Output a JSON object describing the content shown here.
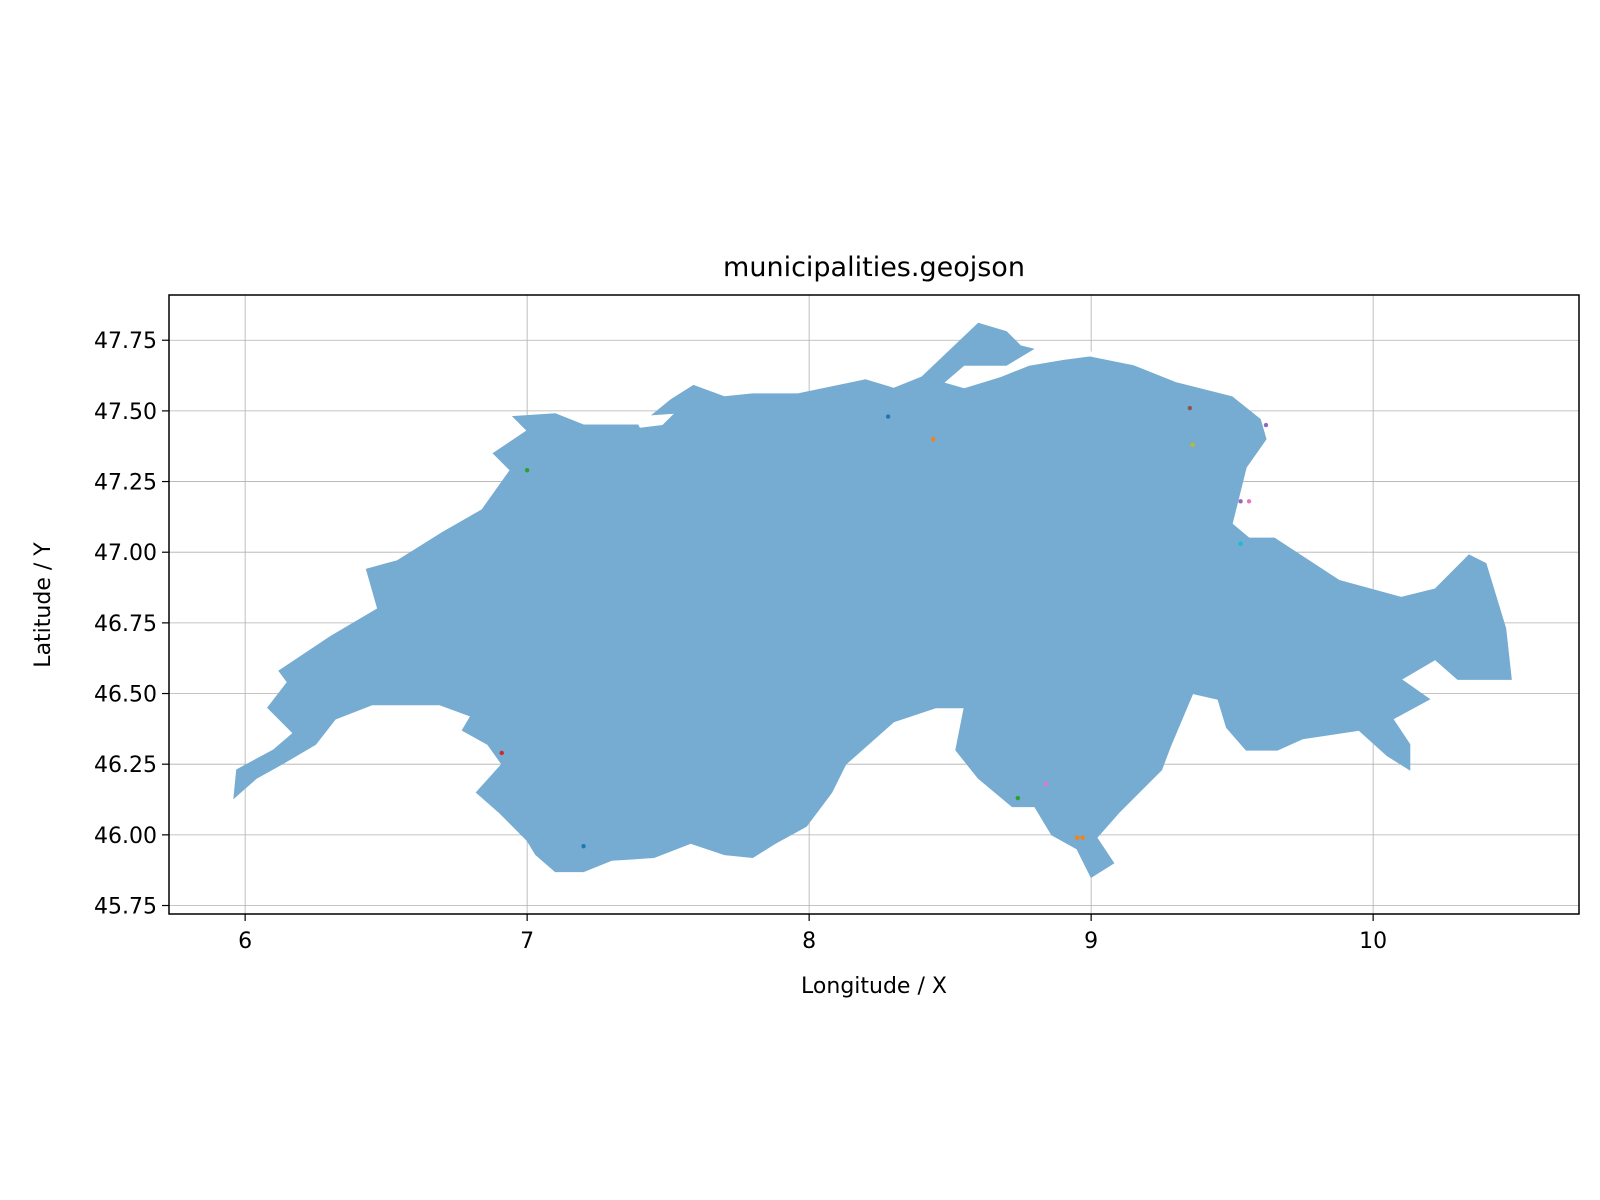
{
  "chart_data": {
    "type": "map",
    "title": "municipalities.geojson",
    "xlabel": "Longitude / X",
    "ylabel": "Latitude / Y",
    "xlim": [
      5.73,
      10.73
    ],
    "ylim": [
      45.72,
      47.91
    ],
    "x_ticks": [
      6,
      7,
      8,
      9,
      10
    ],
    "y_ticks": [
      45.75,
      46.0,
      46.25,
      46.5,
      46.75,
      47.0,
      47.25,
      47.5,
      47.75
    ],
    "grid": true,
    "fill_color": "#76acd2",
    "outline": [
      [
        5.96,
        46.13
      ],
      [
        6.04,
        46.2
      ],
      [
        6.13,
        46.25
      ],
      [
        6.25,
        46.32
      ],
      [
        6.32,
        46.41
      ],
      [
        6.45,
        46.46
      ],
      [
        6.69,
        46.46
      ],
      [
        6.8,
        46.42
      ],
      [
        6.77,
        46.37
      ],
      [
        6.86,
        46.32
      ],
      [
        6.91,
        46.25
      ],
      [
        6.82,
        46.15
      ],
      [
        6.9,
        46.08
      ],
      [
        7.0,
        45.98
      ],
      [
        7.03,
        45.93
      ],
      [
        7.1,
        45.87
      ],
      [
        7.2,
        45.87
      ],
      [
        7.3,
        45.91
      ],
      [
        7.45,
        45.92
      ],
      [
        7.58,
        45.97
      ],
      [
        7.7,
        45.93
      ],
      [
        7.8,
        45.92
      ],
      [
        7.88,
        45.97
      ],
      [
        7.99,
        46.03
      ],
      [
        8.08,
        46.15
      ],
      [
        8.13,
        46.25
      ],
      [
        8.3,
        46.4
      ],
      [
        8.45,
        46.45
      ],
      [
        8.55,
        46.45
      ],
      [
        8.52,
        46.3
      ],
      [
        8.6,
        46.2
      ],
      [
        8.72,
        46.1
      ],
      [
        8.8,
        46.1
      ],
      [
        8.86,
        46.0
      ],
      [
        8.95,
        45.95
      ],
      [
        9.0,
        45.85
      ],
      [
        9.08,
        45.9
      ],
      [
        9.02,
        45.99
      ],
      [
        9.1,
        46.08
      ],
      [
        9.25,
        46.23
      ],
      [
        9.28,
        46.31
      ],
      [
        9.36,
        46.5
      ],
      [
        9.45,
        46.48
      ],
      [
        9.48,
        46.38
      ],
      [
        9.55,
        46.3
      ],
      [
        9.66,
        46.3
      ],
      [
        9.75,
        46.34
      ],
      [
        9.95,
        46.37
      ],
      [
        10.05,
        46.28
      ],
      [
        10.13,
        46.23
      ],
      [
        10.13,
        46.32
      ],
      [
        10.07,
        46.41
      ],
      [
        10.2,
        46.48
      ],
      [
        10.1,
        46.55
      ],
      [
        10.22,
        46.62
      ],
      [
        10.3,
        46.55
      ],
      [
        10.49,
        46.55
      ],
      [
        10.47,
        46.73
      ],
      [
        10.4,
        46.96
      ],
      [
        10.34,
        46.99
      ],
      [
        10.22,
        46.87
      ],
      [
        10.1,
        46.84
      ],
      [
        9.88,
        46.9
      ],
      [
        9.65,
        47.05
      ],
      [
        9.56,
        47.05
      ],
      [
        9.5,
        47.1
      ],
      [
        9.55,
        47.3
      ],
      [
        9.62,
        47.4
      ],
      [
        9.6,
        47.47
      ],
      [
        9.5,
        47.55
      ],
      [
        9.3,
        47.6
      ],
      [
        9.15,
        47.66
      ],
      [
        9.0,
        47.69
      ],
      [
        8.87,
        47.7
      ],
      [
        8.75,
        47.73
      ],
      [
        8.7,
        47.78
      ],
      [
        8.6,
        47.81
      ],
      [
        8.4,
        47.62
      ],
      [
        8.3,
        47.58
      ],
      [
        8.2,
        47.61
      ],
      [
        7.96,
        47.56
      ],
      [
        7.8,
        47.56
      ],
      [
        7.7,
        47.55
      ],
      [
        7.59,
        47.59
      ],
      [
        7.51,
        47.54
      ],
      [
        7.4,
        47.45
      ],
      [
        7.2,
        47.45
      ],
      [
        7.1,
        47.49
      ],
      [
        6.95,
        47.48
      ],
      [
        7.0,
        47.43
      ],
      [
        6.88,
        47.35
      ],
      [
        6.94,
        47.29
      ],
      [
        6.84,
        47.15
      ],
      [
        6.7,
        47.07
      ],
      [
        6.54,
        46.97
      ],
      [
        6.43,
        46.94
      ],
      [
        6.47,
        46.8
      ],
      [
        6.3,
        46.7
      ],
      [
        6.12,
        46.58
      ],
      [
        6.15,
        46.54
      ],
      [
        6.08,
        46.45
      ],
      [
        6.17,
        46.36
      ],
      [
        6.1,
        46.3
      ],
      [
        5.97,
        46.23
      ]
    ],
    "lakes": [
      [
        [
          8.48,
          47.6
        ],
        [
          8.55,
          47.66
        ],
        [
          8.7,
          47.66
        ],
        [
          8.8,
          47.72
        ],
        [
          8.95,
          47.72
        ],
        [
          9.05,
          47.7
        ],
        [
          8.9,
          47.68
        ],
        [
          8.78,
          47.66
        ],
        [
          8.68,
          47.62
        ],
        [
          8.55,
          47.58
        ]
      ],
      [
        [
          7.38,
          47.48
        ],
        [
          7.52,
          47.49
        ],
        [
          7.48,
          47.45
        ],
        [
          7.4,
          47.44
        ]
      ]
    ],
    "points": [
      {
        "lon": 6.91,
        "lat": 46.29,
        "color": "#d62728"
      },
      {
        "lon": 7.2,
        "lat": 45.96,
        "color": "#1f77b4"
      },
      {
        "lon": 8.74,
        "lat": 46.13,
        "color": "#2ca02c"
      },
      {
        "lon": 8.95,
        "lat": 45.99,
        "color": "#ff7f0e"
      },
      {
        "lon": 8.97,
        "lat": 45.99,
        "color": "#ff7f0e"
      },
      {
        "lon": 9.53,
        "lat": 47.18,
        "color": "#9467bd"
      },
      {
        "lon": 9.56,
        "lat": 47.18,
        "color": "#e377c2"
      },
      {
        "lon": 9.35,
        "lat": 47.51,
        "color": "#8c564b"
      },
      {
        "lon": 9.62,
        "lat": 47.45,
        "color": "#9467bd"
      },
      {
        "lon": 8.28,
        "lat": 47.48,
        "color": "#1f77b4"
      },
      {
        "lon": 8.44,
        "lat": 47.4,
        "color": "#ff7f0e"
      },
      {
        "lon": 7.0,
        "lat": 47.29,
        "color": "#2ca02c"
      },
      {
        "lon": 9.53,
        "lat": 47.03,
        "color": "#17becf"
      },
      {
        "lon": 8.84,
        "lat": 46.18,
        "color": "#e377c2"
      },
      {
        "lon": 9.36,
        "lat": 47.38,
        "color": "#bcbd22"
      }
    ]
  }
}
